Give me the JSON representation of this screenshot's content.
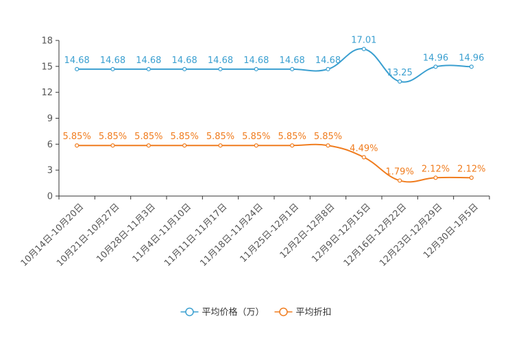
{
  "chart_data": {
    "type": "line",
    "title": "",
    "xlabel": "",
    "ylabel": "",
    "ylim": [
      0,
      18
    ],
    "yticks": [
      0,
      3,
      6,
      9,
      12,
      15,
      18
    ],
    "grid": false,
    "legend_position": "bottom-center",
    "categories": [
      "10月14日-10月20日",
      "10月21日-10月27日",
      "10月28日-11月3日",
      "11月4日-11月10日",
      "11月11日-11月17日",
      "11月18日-11月24日",
      "11月25日-12月1日",
      "12月2日-12月8日",
      "12月9日-12月15日",
      "12月16日-12月22日",
      "12月23日-12月29日",
      "12月30日-1月5日"
    ],
    "series": [
      {
        "name": "平均价格（万）",
        "color": "#3a9fd0",
        "values": [
          14.68,
          14.68,
          14.68,
          14.68,
          14.68,
          14.68,
          14.68,
          14.68,
          17.01,
          13.25,
          14.96,
          14.96
        ],
        "labels": [
          "14.68",
          "14.68",
          "14.68",
          "14.68",
          "14.68",
          "14.68",
          "14.68",
          "14.68",
          "17.01",
          "13.25",
          "14.96",
          "14.96"
        ]
      },
      {
        "name": "平均折扣",
        "color": "#f07c1e",
        "values": [
          5.85,
          5.85,
          5.85,
          5.85,
          5.85,
          5.85,
          5.85,
          5.85,
          4.49,
          1.79,
          2.12,
          2.12
        ],
        "labels": [
          "5.85%",
          "5.85%",
          "5.85%",
          "5.85%",
          "5.85%",
          "5.85%",
          "5.85%",
          "5.85%",
          "4.49%",
          "1.79%",
          "2.12%",
          "2.12%"
        ]
      }
    ]
  }
}
